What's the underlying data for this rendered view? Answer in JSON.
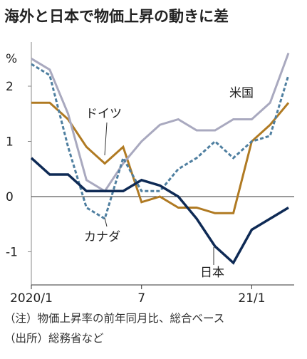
{
  "chart_data": {
    "type": "line",
    "title": "海外と日本で物価上昇の動きに差",
    "y_unit": "%",
    "categories": [
      "2020/1",
      null,
      null,
      null,
      null,
      null,
      "7",
      null,
      null,
      null,
      null,
      null,
      "21/1",
      null,
      null
    ],
    "ylim": [
      -1.6,
      2.8
    ],
    "yticks": [
      -1,
      0,
      1,
      2
    ],
    "series": [
      {
        "name": "米国",
        "color": "#a9a9bf",
        "dashed": false,
        "values": [
          2.5,
          2.3,
          1.5,
          0.3,
          0.1,
          0.6,
          1.0,
          1.3,
          1.4,
          1.2,
          1.2,
          1.4,
          1.4,
          1.7,
          2.6
        ]
      },
      {
        "name": "ドイツ",
        "color": "#b07a22",
        "dashed": false,
        "values": [
          1.7,
          1.7,
          1.4,
          0.9,
          0.6,
          0.9,
          -0.1,
          0.0,
          -0.2,
          -0.2,
          -0.3,
          -0.3,
          1.0,
          1.3,
          1.7
        ]
      },
      {
        "name": "カナダ",
        "color": "#4f7fa0",
        "dashed": true,
        "values": [
          2.4,
          2.2,
          0.9,
          -0.2,
          -0.4,
          0.7,
          0.1,
          0.1,
          0.5,
          0.7,
          1.0,
          0.7,
          1.0,
          1.1,
          2.2
        ]
      },
      {
        "name": "日本",
        "color": "#0e2a55",
        "dashed": false,
        "values": [
          0.7,
          0.4,
          0.4,
          0.1,
          0.1,
          0.1,
          0.3,
          0.2,
          0.0,
          -0.4,
          -0.9,
          -1.2,
          -0.6,
          -0.4,
          -0.2
        ]
      }
    ],
    "notes": [
      "（注）物価上昇率の前年同月比、総合ベース",
      "（出所）総務省など"
    ]
  }
}
